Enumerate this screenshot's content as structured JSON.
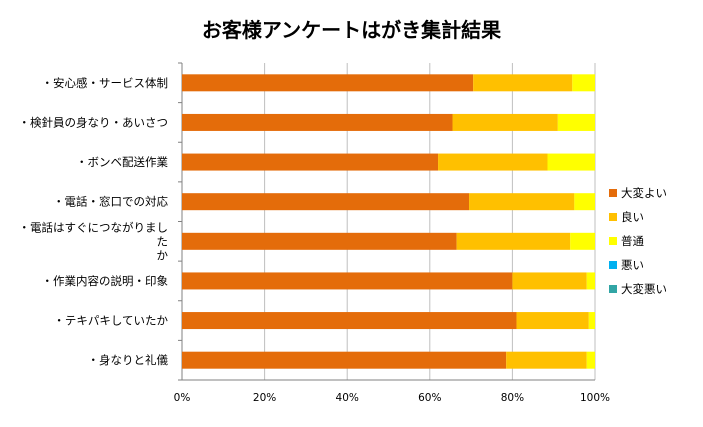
{
  "chart_data": {
    "type": "bar",
    "orientation": "horizontal",
    "stacked": "percent",
    "title": "お客様アンケートはがき集計結果",
    "categories": [
      "・安心感・サービス体制",
      "・検針員の身なり・あいさつ",
      "・ボンベ配送作業",
      "・電話・窓口での対応",
      "・電話はすぐにつながりましたか",
      "・作業内容の説明・印象",
      "・テキパキしていたか",
      "・身なりと礼儀"
    ],
    "category_lines": [
      [
        "・安心感・サービス体制"
      ],
      [
        "・検針員の身なり・あいさつ"
      ],
      [
        "・ボンベ配送作業"
      ],
      [
        "・電話・窓口での対応"
      ],
      [
        "・電話はすぐにつながりまし",
        "た",
        "か"
      ],
      [
        "・作業内容の説明・印象"
      ],
      [
        "・テキパキしていたか"
      ],
      [
        "・身なりと礼儀"
      ]
    ],
    "series": [
      {
        "name": "大変よい",
        "color": "#E46C0A",
        "values": [
          70.5,
          65.5,
          62,
          69.5,
          66.5,
          80,
          81,
          78.5
        ]
      },
      {
        "name": "良い",
        "color": "#FFC000",
        "values": [
          24,
          25.5,
          26.5,
          25.5,
          27.5,
          18,
          17.5,
          19.5
        ]
      },
      {
        "name": "普通",
        "color": "#FFFF00",
        "values": [
          5.5,
          9,
          11.5,
          5,
          6,
          2,
          1.5,
          2
        ]
      },
      {
        "name": "悪い",
        "color": "#00B0F0",
        "values": [
          0,
          0,
          0,
          0,
          0,
          0,
          0,
          0
        ]
      },
      {
        "name": "大変悪い",
        "color": "#31A5A5",
        "values": [
          0,
          0,
          0,
          0,
          0,
          0,
          0,
          0
        ]
      }
    ],
    "x_ticks": [
      "0%",
      "20%",
      "40%",
      "60%",
      "80%",
      "100%"
    ],
    "xlim": [
      0,
      100
    ],
    "grid": true,
    "legend_position": "right"
  }
}
